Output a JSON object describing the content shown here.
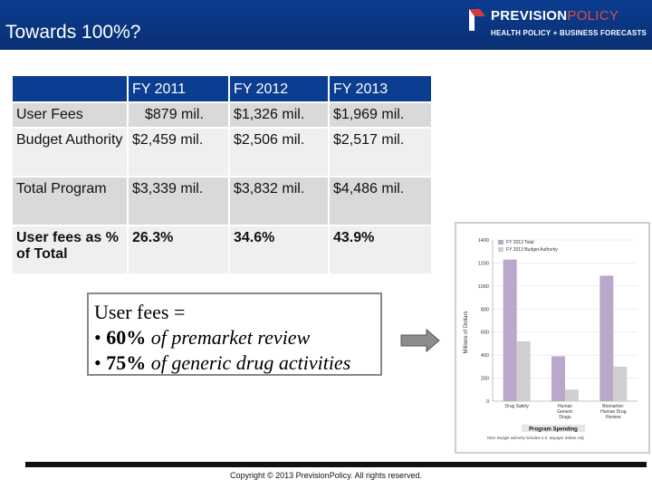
{
  "slide": {
    "title": "Towards 100%?"
  },
  "logo": {
    "name_part1": "PREVISION",
    "name_part2": "POLICY",
    "tagline": "HEALTH POLICY + BUSINESS FORECASTS"
  },
  "table": {
    "headers": [
      "",
      "FY 2011",
      "FY 2012",
      "FY 2013"
    ],
    "rows": [
      {
        "label": "User Fees",
        "values": [
          "$879 mil.",
          "$1,326 mil.",
          "$1,969 mil."
        ]
      },
      {
        "label": "Budget Authority",
        "values": [
          "$2,459 mil.",
          "$2,506 mil.",
          "$2,517 mil."
        ]
      },
      {
        "label": "Total Program",
        "values": [
          "$3,339 mil.",
          "$3,832 mil.",
          "$4,486 mil."
        ]
      },
      {
        "label": "User fees as % of Total",
        "values": [
          "26.3%",
          "34.6%",
          "43.9%"
        ]
      }
    ]
  },
  "callout": {
    "line1": "User fees =",
    "line2_bold": "60%",
    "line2_rest": "of premarket review",
    "line3_bold": "75%",
    "line3_rest": "of generic drug activities",
    "bullet": "•"
  },
  "chart_data": {
    "type": "bar",
    "title": "",
    "xlabel": "Program Spending",
    "ylabel": "Millions of Dollars",
    "ylim": [
      0,
      1400
    ],
    "yticks": [
      0,
      200,
      400,
      600,
      800,
      1000,
      1200,
      1400
    ],
    "categories": [
      "Drug Safety",
      "Human Generic Drugs",
      "Biomarker: Human Drug Review"
    ],
    "series": [
      {
        "name": "FY 2013 Total",
        "color": "#b9a8c9",
        "values": [
          1230,
          390,
          1090
        ]
      },
      {
        "name": "FY 2013 Budget Authority",
        "color": "#cfcfcf",
        "values": [
          520,
          100,
          300
        ]
      }
    ],
    "footnote": "Note: Budget authority includes U.S. taxpayer dollars only"
  },
  "footer": {
    "copyright": "Copyright © 2013 PrevisionPolicy. All rights reserved."
  }
}
